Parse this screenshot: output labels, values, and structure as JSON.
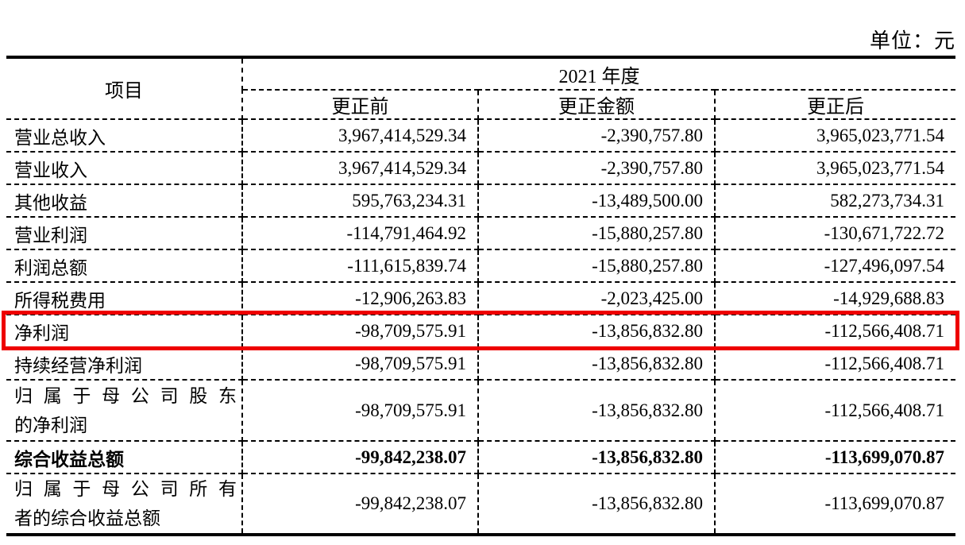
{
  "page": {
    "unit_label": "单位：元"
  },
  "table": {
    "header": {
      "item_col": "项目",
      "year_group": "2021 年度",
      "sub_columns": [
        "更正前",
        "更正金额",
        "更正后"
      ]
    },
    "rows": [
      {
        "label_lines": [
          "营业总收入"
        ],
        "before": "3,967,414,529.34",
        "amount": "-2,390,757.80",
        "after": "3,965,023,771.54"
      },
      {
        "label_lines": [
          "营业收入"
        ],
        "before": "3,967,414,529.34",
        "amount": "-2,390,757.80",
        "after": "3,965,023,771.54"
      },
      {
        "label_lines": [
          "其他收益"
        ],
        "before": "595,763,234.31",
        "amount": "-13,489,500.00",
        "after": "582,273,734.31"
      },
      {
        "label_lines": [
          "营业利润"
        ],
        "before": "-114,791,464.92",
        "amount": "-15,880,257.80",
        "after": "-130,671,722.72"
      },
      {
        "label_lines": [
          "利润总额"
        ],
        "before": "-111,615,839.74",
        "amount": "-15,880,257.80",
        "after": "-127,496,097.54"
      },
      {
        "label_lines": [
          "所得税费用"
        ],
        "before": "-12,906,263.83",
        "amount": "-2,023,425.00",
        "after": "-14,929,688.83"
      },
      {
        "label_lines": [
          "净利润"
        ],
        "before": "-98,709,575.91",
        "amount": "-13,856,832.80",
        "after": "-112,566,408.71",
        "highlight": true
      },
      {
        "label_lines": [
          "持续经营净利润"
        ],
        "before": "-98,709,575.91",
        "amount": "-13,856,832.80",
        "after": "-112,566,408.71"
      },
      {
        "label_lines": [
          "归属于母公司股东",
          "的净利润"
        ],
        "justify_first_line": true,
        "tall": true,
        "before": "-98,709,575.91",
        "amount": "-13,856,832.80",
        "after": "-112,566,408.71"
      },
      {
        "label_lines": [
          "综合收益总额"
        ],
        "bold": true,
        "before": "-99,842,238.07",
        "amount": "-13,856,832.80",
        "after": "-113,699,070.87"
      },
      {
        "label_lines": [
          "归属于母公司所有",
          "者的综合收益总额"
        ],
        "justify_first_line": true,
        "tall": true,
        "before": "-99,842,238.07",
        "amount": "-13,856,832.80",
        "after": "-113,699,070.87"
      }
    ]
  },
  "highlight": {
    "color": "#ee0000",
    "row_label": "净利润"
  }
}
